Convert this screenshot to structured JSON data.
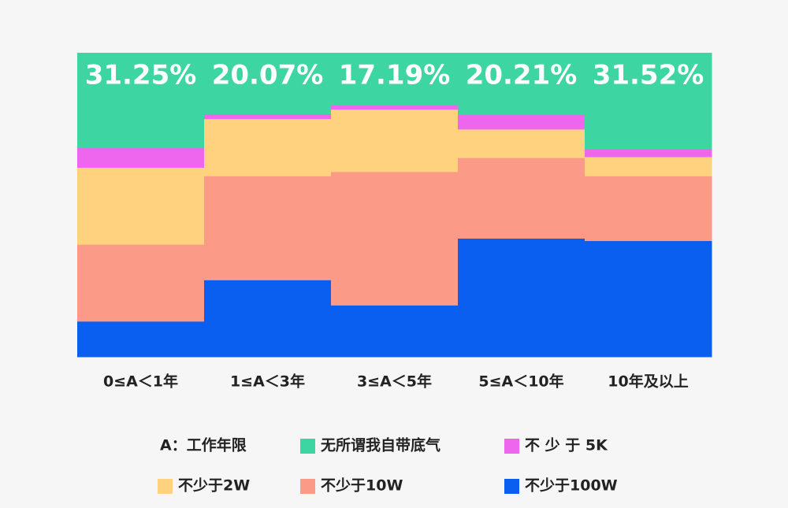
{
  "chart_data": {
    "type": "stacked_bar",
    "categories": [
      "0≤A＜1年",
      "1≤A＜3年",
      "3≤A＜5年",
      "5≤A＜10年",
      "10年及以上"
    ],
    "ylim": [
      0,
      100
    ],
    "legend_note": "A：工作年限",
    "series": [
      {
        "name": "不少于100W",
        "color": "#0a5ef0",
        "values": [
          11.7,
          25.3,
          17.0,
          39.0,
          38.2
        ]
      },
      {
        "name": "不少于10W",
        "color": "#fc9a88",
        "values": [
          25.3,
          34.2,
          43.9,
          26.5,
          21.3
        ]
      },
      {
        "name": "不少于2W",
        "color": "#ffd27f",
        "values": [
          25.3,
          18.8,
          20.5,
          9.4,
          6.3
        ]
      },
      {
        "name": "不 少 于 5K",
        "color": "#ee66ee",
        "values": [
          6.45,
          1.63,
          1.41,
          4.89,
          2.68
        ]
      },
      {
        "name": "无所谓我自带底气",
        "color": "#3dd6a3",
        "values": [
          31.25,
          20.07,
          17.19,
          20.21,
          31.52
        ],
        "value_labels": [
          "31.25%",
          "20.07%",
          "17.19%",
          "20.21%",
          "31.52%"
        ]
      }
    ]
  }
}
